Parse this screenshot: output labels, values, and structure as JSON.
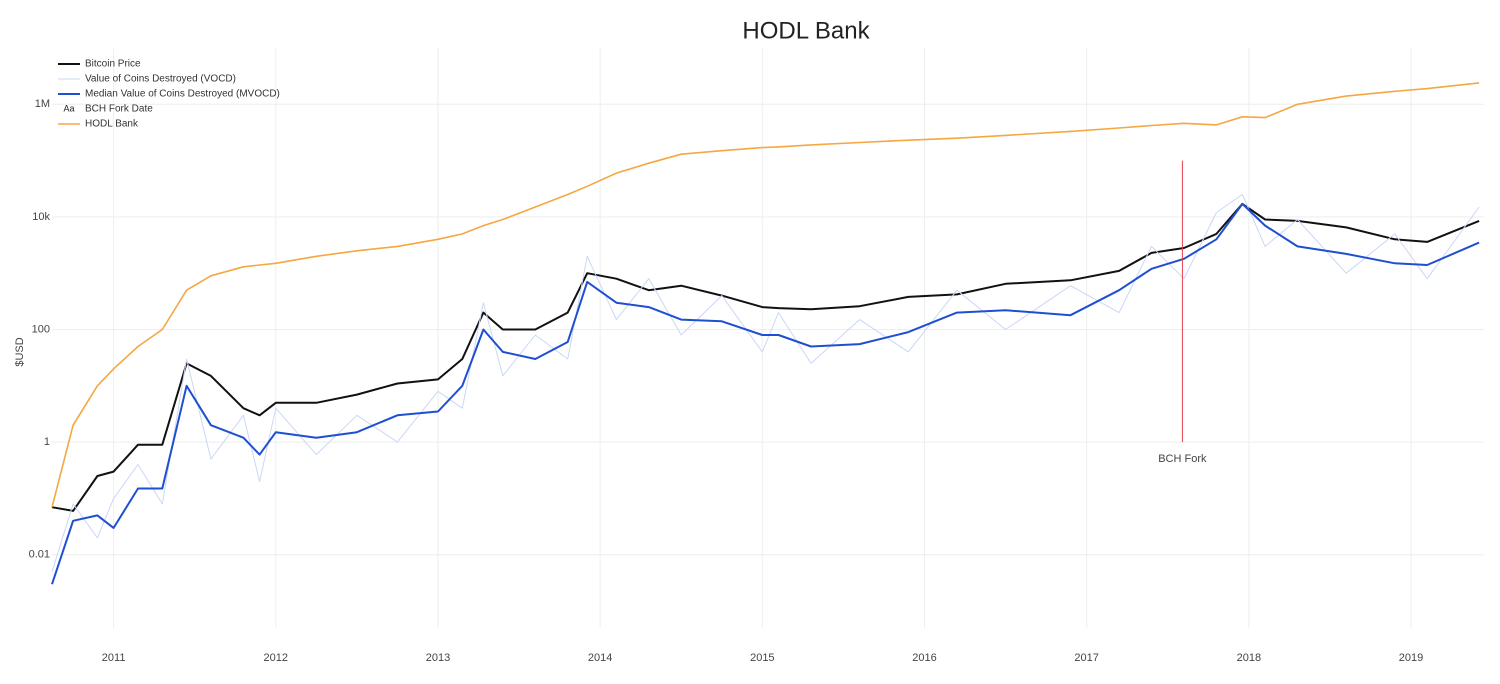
{
  "chart_data": {
    "type": "line",
    "title": "HODL Bank",
    "y_label": "$USD",
    "log_y": true,
    "grid": true,
    "x": [
      2010.62,
      2010.75,
      2010.9,
      2011.0,
      2011.15,
      2011.3,
      2011.45,
      2011.6,
      2011.8,
      2011.9,
      2012.0,
      2012.25,
      2012.5,
      2012.75,
      2013.0,
      2013.15,
      2013.28,
      2013.4,
      2013.6,
      2013.8,
      2013.92,
      2014.1,
      2014.3,
      2014.5,
      2014.75,
      2015.0,
      2015.1,
      2015.3,
      2015.6,
      2015.9,
      2016.2,
      2016.5,
      2016.9,
      2017.2,
      2017.4,
      2017.6,
      2017.8,
      2017.96,
      2018.1,
      2018.3,
      2018.6,
      2018.9,
      2019.1,
      2019.42
    ],
    "series": [
      {
        "name": "Bitcoin Price",
        "color": "#111111",
        "width": 2,
        "values": [
          0.07,
          0.06,
          0.25,
          0.3,
          0.9,
          0.9,
          25,
          15,
          4,
          3,
          5,
          5,
          7,
          11,
          13,
          30,
          200,
          100,
          100,
          200,
          1000,
          800,
          500,
          600,
          400,
          250,
          240,
          230,
          260,
          380,
          420,
          650,
          750,
          1100,
          2300,
          2800,
          5000,
          17000,
          9000,
          8500,
          6500,
          4000,
          3600,
          8500
        ]
      },
      {
        "name": "Value of Coins Destroyed (VOCD)",
        "color": "#c9d7f7",
        "width": 1,
        "values": [
          0.005,
          0.08,
          0.02,
          0.1,
          0.4,
          0.08,
          30,
          0.5,
          3,
          0.2,
          4,
          0.6,
          3,
          1,
          8,
          4,
          300,
          15,
          80,
          30,
          2000,
          150,
          800,
          80,
          400,
          40,
          200,
          25,
          150,
          40,
          500,
          100,
          600,
          200,
          3000,
          800,
          12000,
          25000,
          3000,
          9000,
          1000,
          5000,
          800,
          15000
        ]
      },
      {
        "name": "Median Value of Coins Destroyed (MVOCD)",
        "color": "#1f4fd1",
        "width": 2,
        "values": [
          0.003,
          0.04,
          0.05,
          0.03,
          0.15,
          0.15,
          10,
          2,
          1.2,
          0.6,
          1.5,
          1.2,
          1.5,
          3,
          3.5,
          10,
          100,
          40,
          30,
          60,
          700,
          300,
          250,
          150,
          140,
          80,
          80,
          50,
          55,
          90,
          200,
          220,
          180,
          500,
          1200,
          1800,
          4000,
          17000,
          7000,
          3000,
          2200,
          1500,
          1400,
          3500
        ]
      },
      {
        "name": "BCH Fork Date",
        "color": "#e8404a",
        "width": 1,
        "legend_icon": "Aa",
        "annotation": "BCH Fork",
        "x": [
          2017.59,
          2017.59
        ],
        "values": [
          1,
          100000
        ]
      },
      {
        "name": "HODL Bank",
        "color": "#f5a742",
        "width": 1.6,
        "values": [
          0.07,
          2,
          10,
          20,
          50,
          100,
          500,
          900,
          1300,
          1400,
          1500,
          2000,
          2500,
          3000,
          4000,
          5000,
          7000,
          9000,
          15000,
          25000,
          35000,
          60000,
          90000,
          130000,
          150000,
          170000,
          175000,
          190000,
          210000,
          230000,
          250000,
          280000,
          330000,
          380000,
          420000,
          460000,
          430000,
          600000,
          580000,
          1000000,
          1400000,
          1700000,
          1900000,
          2400000
        ]
      }
    ],
    "xlim": [
      2010.62,
      2019.45
    ],
    "xticks": [
      2011,
      2012,
      2013,
      2014,
      2015,
      2016,
      2017,
      2018,
      2019
    ],
    "ylim": [
      0.0005,
      10000000
    ],
    "yticks": [
      0.01,
      1,
      100,
      {
        "value": 10000,
        "label": "10k"
      },
      {
        "value": 1000000,
        "label": "1M"
      }
    ]
  }
}
